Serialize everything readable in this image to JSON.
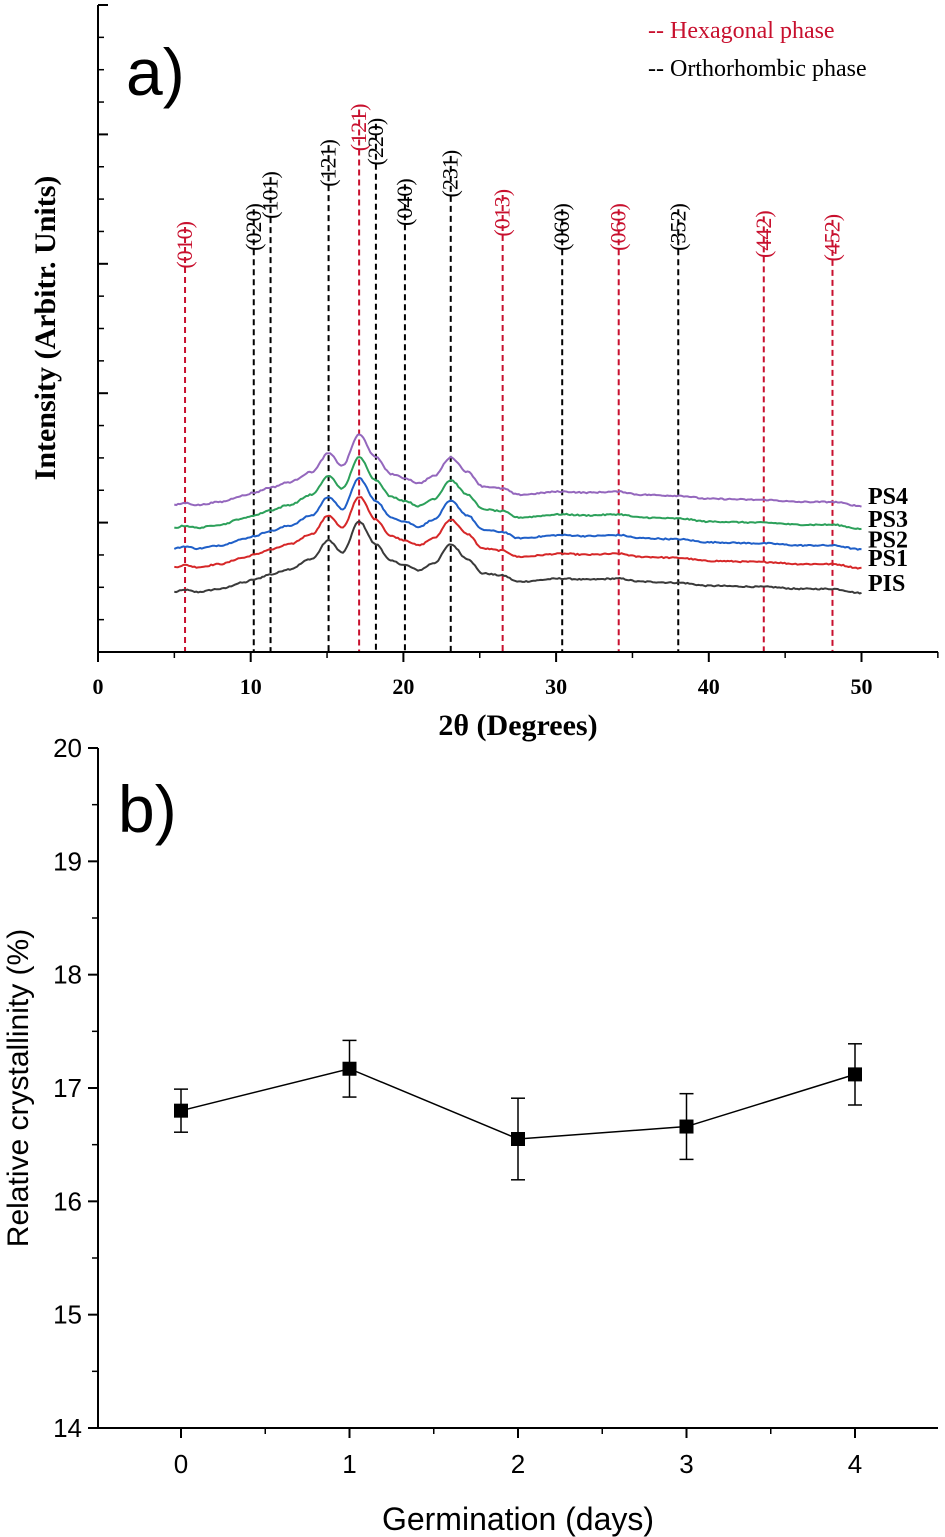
{
  "figure": {
    "panel_a_label": "a)",
    "panel_b_label": "b)"
  },
  "colors": {
    "hexagonal": "#c8102e",
    "orthorhombic": "#000000",
    "PIS": "#3a3a3a",
    "PS1": "#d62728",
    "PS2": "#1f5fc8",
    "PS3": "#2ca05a",
    "PS4": "#9467bd"
  },
  "chart_data": [
    {
      "type": "line",
      "title": "",
      "xlabel": "2θ (Degrees)",
      "ylabel": "Intensity (Arbitr. Units)",
      "xlim": [
        0,
        55
      ],
      "xticks": [
        0,
        10,
        20,
        30,
        40,
        50
      ],
      "ylim": [
        0,
        10
      ],
      "yticks_labels_shown": false,
      "legend": [
        {
          "label": "-- Hexagonal phase",
          "phase": "hexagonal"
        },
        {
          "label": "-- Orthorhombic phase",
          "phase": "orthorhombic"
        }
      ],
      "peaks": [
        {
          "x": 5.7,
          "label": "(010)",
          "phase": "hexagonal",
          "label_top": 3.4
        },
        {
          "x": 10.2,
          "label": "(020)",
          "phase": "orthorhombic",
          "label_top": 2.9
        },
        {
          "x": 11.3,
          "label": "(101)",
          "phase": "orthorhombic",
          "label_top": 2.0
        },
        {
          "x": 15.1,
          "label": "(121)",
          "phase": "orthorhombic",
          "label_top": 1.1
        },
        {
          "x": 17.1,
          "label": "(121)",
          "phase": "hexagonal",
          "label_top": 0.1
        },
        {
          "x": 18.2,
          "label": "(220)",
          "phase": "orthorhombic",
          "label_top": 0.5
        },
        {
          "x": 20.1,
          "label": "(040)",
          "phase": "orthorhombic",
          "label_top": 2.2
        },
        {
          "x": 23.1,
          "label": "(231)",
          "phase": "orthorhombic",
          "label_top": 1.4
        },
        {
          "x": 26.5,
          "label": "(013)",
          "phase": "hexagonal",
          "label_top": 2.5
        },
        {
          "x": 30.4,
          "label": "(060)",
          "phase": "orthorhombic",
          "label_top": 2.9
        },
        {
          "x": 34.1,
          "label": "(060)",
          "phase": "hexagonal",
          "label_top": 2.9
        },
        {
          "x": 38.0,
          "label": "(352)",
          "phase": "orthorhombic",
          "label_top": 2.9
        },
        {
          "x": 43.6,
          "label": "(442)",
          "phase": "hexagonal",
          "label_top": 3.1
        },
        {
          "x": 48.1,
          "label": "(452)",
          "phase": "hexagonal",
          "label_top": 3.2
        }
      ],
      "series": [
        {
          "name": "PIS",
          "offset": 0.0
        },
        {
          "name": "PS1",
          "offset": 1.2
        },
        {
          "name": "PS2",
          "offset": 2.1
        },
        {
          "name": "PS3",
          "offset": 3.1
        },
        {
          "name": "PS4",
          "offset": 4.2
        }
      ],
      "profile": {
        "x": [
          5.0,
          5.7,
          6.5,
          8.0,
          9.5,
          10.2,
          11.3,
          12.5,
          14.0,
          15.1,
          16.0,
          17.1,
          18.2,
          19.2,
          20.1,
          21.0,
          22.0,
          23.1,
          24.2,
          25.2,
          26.5,
          27.5,
          30.4,
          32.0,
          34.1,
          35.5,
          38.0,
          40.0,
          43.6,
          46.0,
          48.1,
          50.0
        ],
        "y": [
          0.0,
          0.1,
          0.0,
          0.15,
          0.45,
          0.6,
          0.85,
          1.1,
          1.6,
          2.5,
          1.9,
          3.4,
          2.3,
          1.5,
          1.3,
          1.05,
          1.4,
          2.3,
          1.6,
          0.9,
          0.8,
          0.5,
          0.65,
          0.6,
          0.65,
          0.5,
          0.45,
          0.3,
          0.25,
          0.15,
          0.15,
          -0.05
        ]
      },
      "series_labels_order": [
        "PS4",
        "PS3",
        "PS2",
        "PS1",
        "PIS"
      ]
    },
    {
      "type": "scatter",
      "title": "",
      "xlabel": "Germination (days)",
      "ylabel": "Relative crystallinity (%)",
      "xlim": [
        -0.5,
        4.5
      ],
      "ylim": [
        14,
        20
      ],
      "xticks": [
        0,
        1,
        2,
        3,
        4
      ],
      "yticks": [
        14,
        15,
        16,
        17,
        18,
        19,
        20
      ],
      "x": [
        0,
        1,
        2,
        3,
        4
      ],
      "y": [
        16.8,
        17.17,
        16.55,
        16.66,
        17.12
      ],
      "error": [
        0.19,
        0.25,
        0.36,
        0.29,
        0.27
      ],
      "connected": true
    }
  ]
}
